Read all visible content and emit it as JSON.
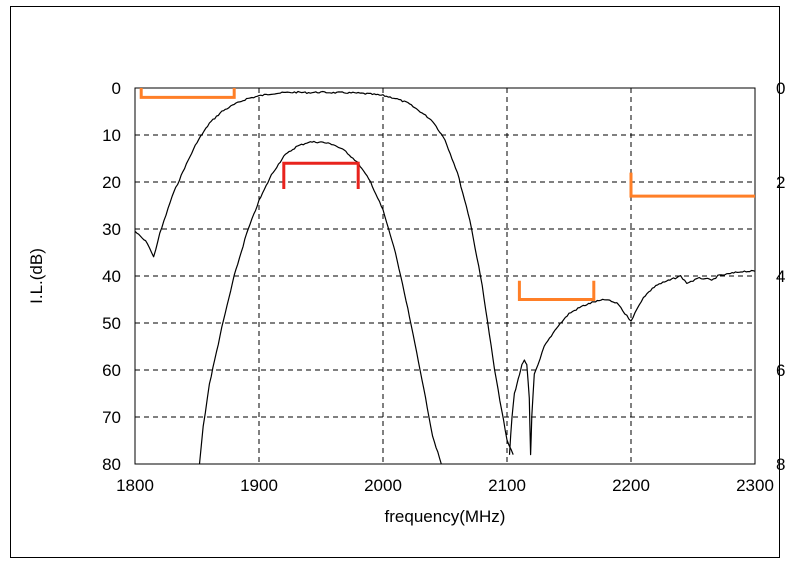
{
  "chart_data": {
    "type": "line",
    "title": "",
    "xlabel": "frequency(MHz)",
    "ylabel": "I.L.(dB)",
    "xlim": [
      1800,
      2300
    ],
    "ylim": [
      0,
      80
    ],
    "y_reversed": true,
    "y2lim": [
      0,
      8
    ],
    "xticks": [
      "1800",
      "1900",
      "2000",
      "2100",
      "2200",
      "2300"
    ],
    "yticks": [
      "0",
      "10",
      "20",
      "30",
      "40",
      "50",
      "60",
      "70",
      "80"
    ],
    "y2ticks": [
      "0",
      "2",
      "4",
      "6",
      "8"
    ],
    "grid": true,
    "colors": {
      "curve": "#000000",
      "mask_orange": "#ff7f27",
      "mask_red": "#e8231d",
      "grid": "#000000"
    },
    "series": [
      {
        "x": [
          1800,
          1810,
          1815,
          1820,
          1825,
          1830,
          1840,
          1850,
          1860,
          1870,
          1880,
          1890,
          1900,
          1910,
          1920,
          1930,
          1940,
          1950,
          1960,
          1970,
          1980,
          1990,
          2000,
          2010,
          2020,
          2030,
          2040,
          2050,
          2060,
          2070,
          2080,
          2090,
          2100,
          2105
        ],
        "y": [
          30.5,
          33,
          36,
          31,
          27,
          23,
          17,
          11.5,
          7.5,
          5,
          3.5,
          2.3,
          1.7,
          1.2,
          1.0,
          0.9,
          1.0,
          0.9,
          1.0,
          1.0,
          1.1,
          1.3,
          1.6,
          2.2,
          3.2,
          5,
          7,
          11,
          18,
          28,
          42,
          60,
          75,
          78
        ]
      },
      {
        "x": [
          1852,
          1855,
          1860,
          1870,
          1880,
          1890,
          1900,
          1910,
          1920,
          1930,
          1940,
          1950,
          1960,
          1970,
          1980,
          1990,
          2000,
          2010,
          2020,
          2030,
          2040,
          2047
        ],
        "y": [
          80,
          72,
          63,
          51,
          40,
          31,
          24,
          18.5,
          14.5,
          12.5,
          11.5,
          11.5,
          12,
          13.5,
          16,
          20,
          26,
          35,
          47,
          60,
          74,
          80
        ]
      },
      {
        "x": [
          2102,
          2104,
          2106,
          2108,
          2110,
          2112,
          2114,
          2116,
          2118,
          2119,
          2120,
          2122,
          2125,
          2130,
          2140,
          2150,
          2160,
          2170,
          2180,
          2190,
          2195,
          2200,
          2205,
          2210,
          2220,
          2230,
          2240,
          2245,
          2250,
          2255,
          2260,
          2265,
          2270,
          2280,
          2290,
          2300
        ],
        "y": [
          78,
          70,
          65,
          63,
          61,
          59,
          58,
          59,
          66,
          78,
          70,
          61,
          59,
          55,
          51,
          48,
          46.5,
          45.5,
          45,
          46,
          48,
          49.5,
          47,
          44.5,
          42,
          41,
          40,
          41.5,
          41,
          40.5,
          40.5,
          41,
          40,
          39.5,
          39,
          39
        ]
      }
    ],
    "masks": [
      {
        "color": "orange",
        "x": [
          1805,
          1880
        ],
        "y": 2,
        "tick_to": 0
      },
      {
        "color": "red",
        "x": [
          1920,
          1980
        ],
        "y": 16,
        "tick_to": 21.5
      },
      {
        "color": "orange",
        "x": [
          2110,
          2170
        ],
        "y": 45,
        "tick_to": 41
      },
      {
        "color": "orange",
        "x": [
          2200,
          2300
        ],
        "y": 23,
        "tick_to": 18
      }
    ]
  }
}
